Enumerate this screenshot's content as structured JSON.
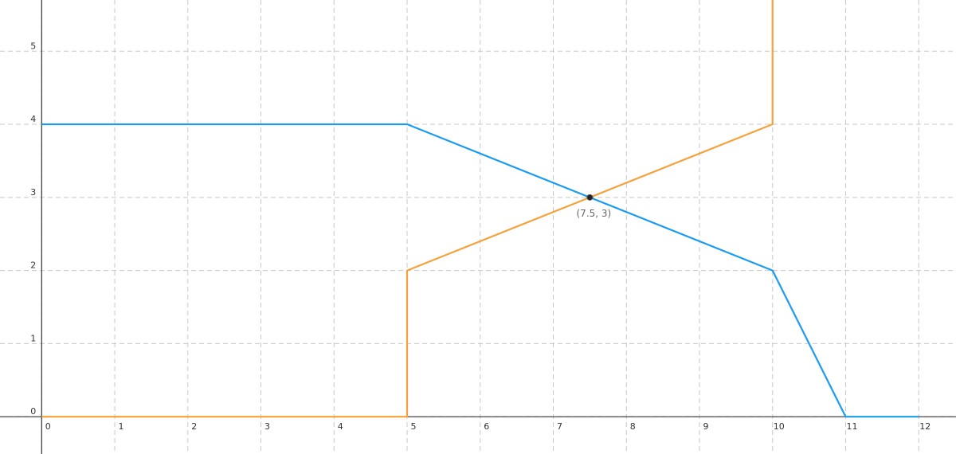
{
  "chart_data": {
    "type": "line",
    "series": [
      {
        "color": "#1a9cf0",
        "x": [
          0,
          5,
          10,
          11,
          12
        ],
        "values": [
          4,
          4,
          2,
          0,
          0
        ]
      },
      {
        "color": "#f7a13a",
        "x": [
          0,
          5,
          5,
          10,
          10
        ],
        "values": [
          0,
          0,
          2,
          4,
          5.7
        ]
      }
    ],
    "annotations": [
      {
        "x": 7.5,
        "y": 3,
        "label": "(7.5, 3)"
      }
    ],
    "xlim": [
      -0.57,
      12.51
    ],
    "ylim": [
      -0.51,
      5.7
    ],
    "xticks": [
      0,
      1,
      2,
      3,
      4,
      5,
      6,
      7,
      8,
      9,
      10,
      11,
      12
    ],
    "yticks": [
      0,
      1,
      2,
      3,
      4,
      5
    ],
    "grid": true
  }
}
